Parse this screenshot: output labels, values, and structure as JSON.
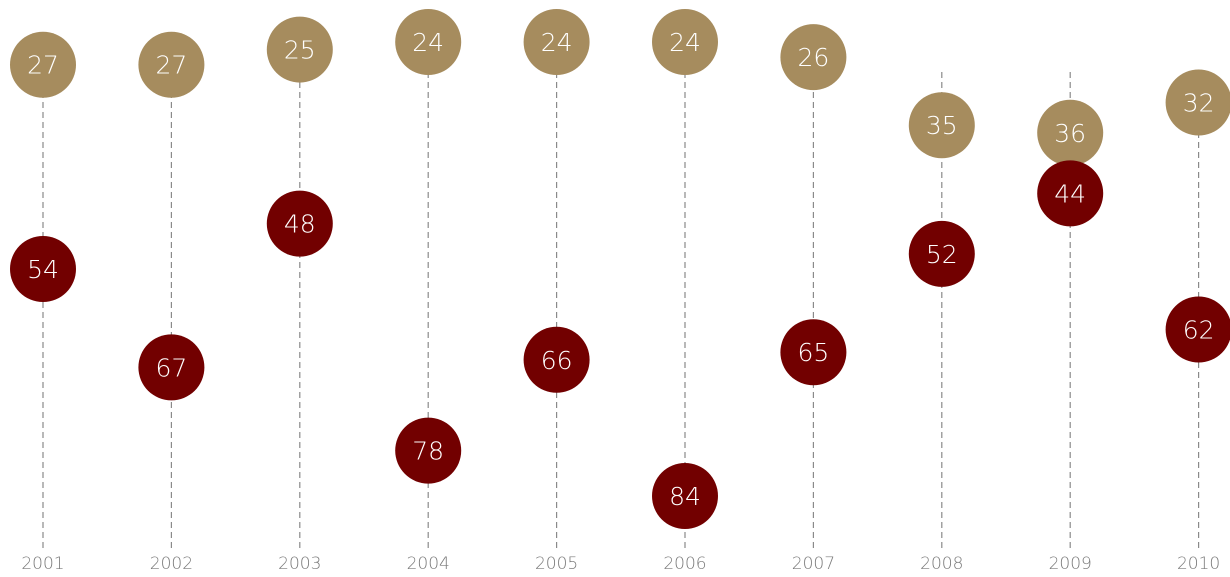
{
  "chart_data": {
    "type": "scatter",
    "categories": [
      "2001",
      "2002",
      "2003",
      "2004",
      "2005",
      "2006",
      "2007",
      "2008",
      "2009",
      "2010"
    ],
    "series": [
      {
        "color": "#a68c5e",
        "values": [
          27,
          27,
          25,
          24,
          24,
          24,
          26,
          35,
          36,
          32
        ]
      },
      {
        "color": "#720000",
        "values": [
          54,
          67,
          48,
          78,
          66,
          84,
          65,
          52,
          44,
          62
        ]
      }
    ],
    "title": "",
    "xlabel": "",
    "ylabel": "",
    "ylim": [
      24,
      84
    ],
    "y_axis": "inverted, hidden",
    "grid": false,
    "legend": "none",
    "stem_style": "dashed vertical guide per category"
  }
}
